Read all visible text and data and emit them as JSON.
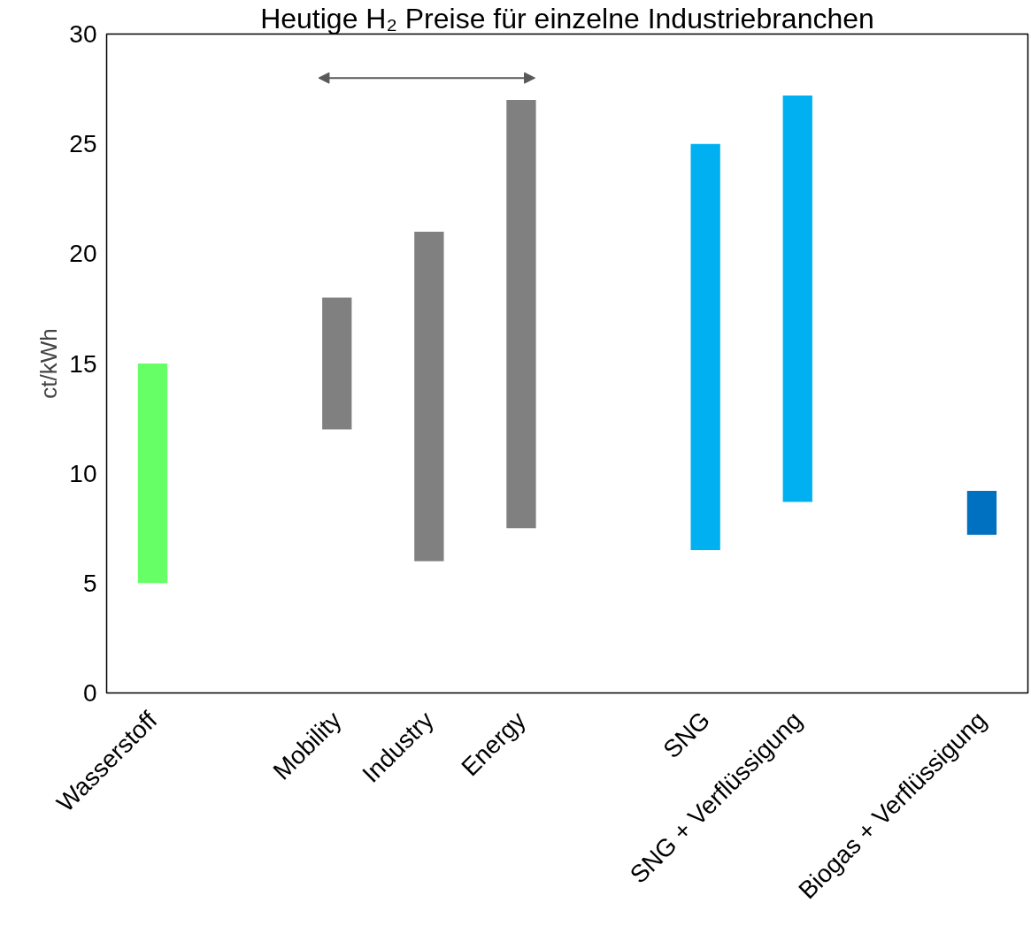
{
  "chart_data": {
    "type": "bar",
    "annotations": [
      "Heutige H₂ Preise für einzelne Industriebranchen"
    ],
    "ylabel": "ct/kWh",
    "categories": [
      "Wasserstoff",
      null,
      "Mobility",
      "Industry",
      "Energy",
      null,
      "SNG",
      "SNG + Verflüssigung",
      null,
      "Biogas + Verflüssigung"
    ],
    "values": [
      10,
      null,
      6,
      15,
      19.5,
      null,
      18.5,
      18.5,
      null,
      2
    ],
    "base": [
      5,
      null,
      12,
      6,
      7.5,
      null,
      6.5,
      8.7,
      null,
      7.2
    ],
    "colors": [
      "#66ff66",
      null,
      "#808080",
      "#808080",
      "#808080",
      null,
      "#00b0f0",
      "#00b0f0",
      null,
      "#0070c0"
    ],
    "ylim": [
      0,
      30
    ],
    "yticks": [
      0,
      5,
      10,
      15,
      20,
      25,
      30
    ]
  }
}
